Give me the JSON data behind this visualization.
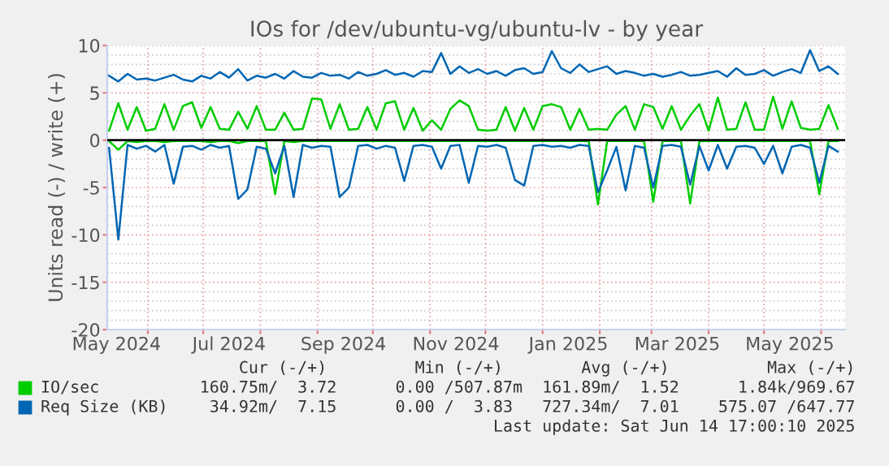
{
  "chart_data": {
    "type": "line",
    "title": "IOs for /dev/ubuntu-vg/ubuntu-lv - by year",
    "ylabel": "Units read (-) / write (+)",
    "x": [
      "2024-05-11",
      "2024-05-16",
      "2024-05-21",
      "2024-05-26",
      "2024-05-31",
      "2024-06-05",
      "2024-06-10",
      "2024-06-15",
      "2024-06-20",
      "2024-06-25",
      "2024-06-30",
      "2024-07-05",
      "2024-07-10",
      "2024-07-15",
      "2024-07-20",
      "2024-07-25",
      "2024-07-30",
      "2024-08-04",
      "2024-08-09",
      "2024-08-14",
      "2024-08-19",
      "2024-08-24",
      "2024-08-29",
      "2024-09-03",
      "2024-09-08",
      "2024-09-13",
      "2024-09-18",
      "2024-09-23",
      "2024-09-28",
      "2024-10-03",
      "2024-10-08",
      "2024-10-13",
      "2024-10-18",
      "2024-10-23",
      "2024-10-28",
      "2024-11-02",
      "2024-11-07",
      "2024-11-12",
      "2024-11-17",
      "2024-11-22",
      "2024-11-27",
      "2024-12-02",
      "2024-12-07",
      "2024-12-12",
      "2024-12-17",
      "2024-12-22",
      "2024-12-27",
      "2025-01-01",
      "2025-01-06",
      "2025-01-11",
      "2025-01-16",
      "2025-01-21",
      "2025-01-26",
      "2025-01-31",
      "2025-02-05",
      "2025-02-10",
      "2025-02-15",
      "2025-02-20",
      "2025-02-25",
      "2025-03-02",
      "2025-03-07",
      "2025-03-12",
      "2025-03-17",
      "2025-03-22",
      "2025-03-27",
      "2025-04-01",
      "2025-04-06",
      "2025-04-11",
      "2025-04-16",
      "2025-04-21",
      "2025-04-26",
      "2025-05-01",
      "2025-05-06",
      "2025-05-11",
      "2025-05-16",
      "2025-05-21",
      "2025-05-26",
      "2025-05-31",
      "2025-06-05",
      "2025-06-10"
    ],
    "series": [
      {
        "name": "IO/sec",
        "color": "#00cc00",
        "values": [
          1.0,
          3.9,
          1.1,
          3.5,
          1.0,
          1.2,
          3.8,
          1.1,
          3.6,
          4.0,
          1.3,
          3.5,
          1.2,
          1.1,
          3.0,
          1.2,
          3.6,
          1.1,
          1.1,
          2.9,
          1.1,
          1.2,
          4.4,
          4.3,
          1.2,
          3.8,
          1.1,
          1.2,
          3.5,
          1.1,
          3.9,
          4.1,
          1.1,
          3.4,
          1.0,
          2.1,
          1.1,
          3.3,
          4.2,
          3.6,
          1.1,
          1.0,
          1.1,
          3.5,
          1.0,
          3.4,
          1.1,
          3.6,
          3.8,
          3.5,
          1.1,
          3.3,
          1.1,
          1.2,
          1.1,
          2.7,
          3.6,
          1.1,
          3.8,
          3.5,
          1.2,
          3.6,
          1.1,
          2.6,
          3.8,
          1.0,
          4.5,
          1.1,
          1.2,
          4.0,
          1.1,
          1.1,
          4.6,
          1.2,
          4.1,
          1.3,
          1.1,
          1.2,
          3.7,
          1.2
        ]
      },
      {
        "color": "#00cc00",
        "values": [
          -0.1,
          -1.0,
          -0.1,
          -0.2,
          -0.1,
          -0.1,
          -0.2,
          -0.1,
          -0.1,
          -0.1,
          -0.1,
          -0.2,
          -0.1,
          -0.1,
          -0.3,
          -0.1,
          -0.1,
          -0.1,
          -5.7,
          -0.1,
          -0.2,
          -0.1,
          -0.1,
          -0.1,
          -0.1,
          -0.1,
          -0.1,
          -0.1,
          -0.1,
          -0.1,
          -0.1,
          -0.1,
          -0.1,
          -0.1,
          -0.1,
          -0.1,
          -0.1,
          -0.1,
          -0.1,
          -0.1,
          -0.1,
          -0.1,
          -0.1,
          -0.1,
          -0.1,
          -0.1,
          -0.1,
          -0.1,
          -0.1,
          -0.1,
          -0.1,
          -0.1,
          -0.1,
          -6.8,
          -0.1,
          -0.1,
          -0.1,
          -0.1,
          -0.1,
          -6.5,
          -0.1,
          -0.1,
          -0.1,
          -6.7,
          -0.1,
          -0.1,
          -0.1,
          -0.1,
          -0.1,
          -0.1,
          -0.1,
          -0.1,
          -0.1,
          -0.1,
          -0.1,
          -0.1,
          -0.1,
          -5.7,
          -0.1,
          -0.1
        ]
      },
      {
        "name": "Req Size (KB)",
        "color": "#0066b3",
        "values": [
          6.8,
          6.2,
          7.0,
          6.4,
          6.5,
          6.3,
          6.6,
          6.9,
          6.4,
          6.2,
          6.8,
          6.5,
          7.2,
          6.6,
          7.5,
          6.3,
          6.8,
          6.6,
          7.0,
          6.5,
          7.3,
          6.7,
          6.6,
          7.1,
          6.8,
          6.9,
          6.5,
          7.2,
          6.8,
          7.0,
          7.4,
          6.9,
          7.1,
          6.7,
          7.3,
          7.2,
          9.2,
          7.0,
          7.8,
          7.1,
          7.5,
          7.0,
          7.3,
          6.8,
          7.4,
          7.6,
          7.0,
          7.2,
          9.4,
          7.6,
          7.1,
          8.0,
          7.2,
          7.5,
          7.8,
          7.0,
          7.3,
          7.1,
          6.8,
          7.0,
          6.7,
          6.9,
          7.2,
          6.8,
          6.9,
          7.1,
          7.3,
          6.7,
          7.6,
          6.9,
          7.0,
          7.4,
          6.8,
          7.2,
          7.5,
          7.1,
          9.5,
          7.3,
          7.8,
          7.0
        ]
      },
      {
        "color": "#0066b3",
        "values": [
          -0.8,
          -10.5,
          -0.5,
          -0.9,
          -0.6,
          -1.2,
          -0.5,
          -4.6,
          -0.7,
          -0.6,
          -1.0,
          -0.5,
          -0.8,
          -0.6,
          -6.2,
          -5.2,
          -0.7,
          -0.9,
          -3.5,
          -0.6,
          -6.0,
          -0.5,
          -0.8,
          -0.6,
          -0.7,
          -6.0,
          -5.0,
          -0.6,
          -0.5,
          -0.9,
          -0.6,
          -0.8,
          -4.3,
          -0.6,
          -0.5,
          -0.7,
          -3.0,
          -0.6,
          -0.5,
          -4.5,
          -0.6,
          -0.7,
          -0.5,
          -0.8,
          -4.2,
          -4.8,
          -0.6,
          -0.5,
          -0.7,
          -0.6,
          -0.8,
          -0.5,
          -0.6,
          -5.5,
          -3.2,
          -0.7,
          -5.3,
          -0.6,
          -0.8,
          -5.0,
          -0.6,
          -0.5,
          -0.7,
          -4.7,
          -0.6,
          -3.2,
          -0.5,
          -3.0,
          -0.7,
          -0.6,
          -0.8,
          -2.5,
          -0.6,
          -3.5,
          -0.7,
          -0.5,
          -0.8,
          -4.5,
          -0.6,
          -1.2
        ]
      }
    ],
    "xlim": [
      "2024-05-10",
      "2025-06-14"
    ],
    "xticks": [
      {
        "value": "2024-05-15",
        "label": "May 2024"
      },
      {
        "value": "2024-06-01",
        "label": null
      },
      {
        "value": "2024-07-01",
        "label": null
      },
      {
        "value": "2024-07-15",
        "label": "Jul 2024"
      },
      {
        "value": "2024-08-01",
        "label": null
      },
      {
        "value": "2024-09-01",
        "label": null
      },
      {
        "value": "2024-09-15",
        "label": "Sep 2024"
      },
      {
        "value": "2024-10-01",
        "label": null
      },
      {
        "value": "2024-11-01",
        "label": null
      },
      {
        "value": "2024-11-15",
        "label": "Nov 2024"
      },
      {
        "value": "2024-12-01",
        "label": null
      },
      {
        "value": "2025-01-01",
        "label": null
      },
      {
        "value": "2025-01-15",
        "label": "Jan 2025"
      },
      {
        "value": "2025-02-01",
        "label": null
      },
      {
        "value": "2025-03-01",
        "label": null
      },
      {
        "value": "2025-03-15",
        "label": "Mar 2025"
      },
      {
        "value": "2025-04-01",
        "label": null
      },
      {
        "value": "2025-05-01",
        "label": null
      },
      {
        "value": "2025-05-15",
        "label": "May 2025"
      },
      {
        "value": "2025-06-01",
        "label": null
      }
    ],
    "ylim": [
      -20,
      10
    ],
    "yticks": [
      -20,
      {
        "value": -19,
        "label": null
      },
      {
        "value": -18,
        "label": null
      },
      {
        "value": -17,
        "label": null
      },
      {
        "value": -16,
        "label": null
      },
      -15,
      {
        "value": -14,
        "label": null
      },
      {
        "value": -13,
        "label": null
      },
      {
        "value": -12,
        "label": null
      },
      {
        "value": -11,
        "label": null
      },
      -10,
      {
        "value": -9,
        "label": null
      },
      {
        "value": -8,
        "label": null
      },
      {
        "value": -7,
        "label": null
      },
      {
        "value": -6,
        "label": null
      },
      -5,
      {
        "value": -4,
        "label": null
      },
      {
        "value": -3,
        "label": null
      },
      {
        "value": -2,
        "label": null
      },
      {
        "value": -1,
        "label": null
      },
      0,
      {
        "value": 1,
        "label": null
      },
      {
        "value": 2,
        "label": null
      },
      {
        "value": 3,
        "label": null
      },
      {
        "value": 4,
        "label": null
      },
      5,
      {
        "value": 6,
        "label": null
      },
      {
        "value": 7,
        "label": null
      },
      {
        "value": 8,
        "label": null
      },
      {
        "value": 9,
        "label": null
      },
      10
    ],
    "ref_lines": [
      {
        "axis": "y",
        "value": 0,
        "color": "#000000"
      }
    ],
    "grid": true,
    "legend": "bottom",
    "annotations": [
      "    Cur (-/+)         Min (-/+)        Avg (-/+)          Max (-/+)",
      "160.75m/  3.72      0.00 /507.87m  161.89m/  1.52      1.84k/969.67",
      " 34.92m/  7.15      0.00 /  3.83   727.34m/  7.01    575.07 /647.77",
      "Last update: Sat Jun 14 17:00:10 2025"
    ]
  }
}
